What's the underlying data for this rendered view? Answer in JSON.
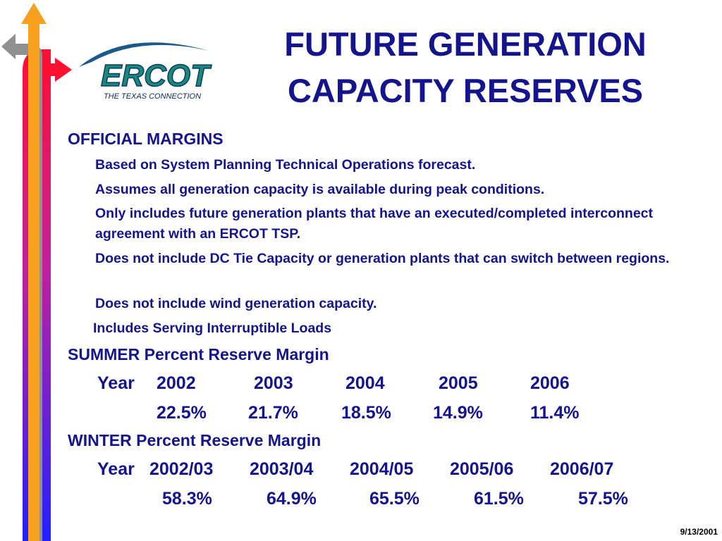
{
  "logo": {
    "name": "ERCOT",
    "tagline": "THE TEXAS CONNECTION"
  },
  "header": {
    "title_lines": [
      "FUTURE GENERATION",
      "CAPACITY RESERVES"
    ]
  },
  "official": {
    "heading": "OFFICIAL MARGINS",
    "bullets": [
      "Based on System Planning Technical Operations forecast.",
      "Assumes all generation capacity is available during peak conditions.",
      "Only includes future generation plants that have an executed/completed interconnect agreement with an ERCOT TSP.",
      "Does not include DC Tie Capacity or generation plants that can switch between regions.",
      "Does not include wind generation capacity.",
      "Includes Serving Interruptible Loads"
    ]
  },
  "summer": {
    "heading": "SUMMER Percent Reserve Margin",
    "year_label": "Year",
    "years": [
      "2002",
      "2003",
      "2004",
      "2005",
      "2006"
    ],
    "values": [
      "22.5%",
      "21.7%",
      "18.5%",
      "14.9%",
      "11.4%"
    ]
  },
  "winter": {
    "heading": "WINTER Percent Reserve Margin",
    "year_label": "Year",
    "years": [
      "2002/03",
      "2003/04",
      "2004/05",
      "2005/06",
      "2006/07"
    ],
    "values": [
      "58.3%",
      "64.9%",
      "65.5%",
      "61.5%",
      "57.5%"
    ]
  },
  "footer": {
    "date": "9/13/2001"
  }
}
